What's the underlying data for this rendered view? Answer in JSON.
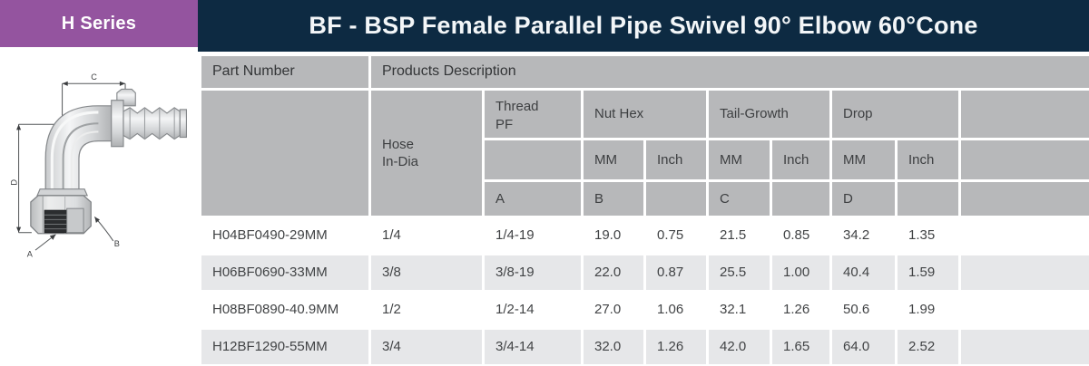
{
  "series_badge": "H Series",
  "title": "BF - BSP Female Parallel Pipe Swivel 90° Elbow 60°Cone",
  "colors": {
    "badge_purple": "#94549f",
    "title_navy": "#0d2a42",
    "header_gray": "#b7b8ba",
    "zebra_gray": "#e6e7e9",
    "text_dark": "#3d3f41"
  },
  "diagram": {
    "labels": {
      "a": "A",
      "b": "B",
      "c": "C",
      "d": "D"
    }
  },
  "table": {
    "header": {
      "part_number": "Part Number",
      "products_description": "Products Description",
      "hose_in_dia": "Hose\nIn-Dia",
      "thread_pf": "Thread\nPF",
      "nut_hex": "Nut Hex",
      "tail_growth": "Tail-Growth",
      "drop": "Drop",
      "units": {
        "mm": "MM",
        "inch": "Inch"
      },
      "dims": {
        "a": "A",
        "b": "B",
        "c": "C",
        "d": "D"
      }
    },
    "rows": [
      {
        "part": "H04BF0490-29MM",
        "hose": "1/4",
        "thread": "1/4-19",
        "nut_mm": "19.0",
        "nut_inch": "0.75",
        "tail_mm": "21.5",
        "tail_inch": "0.85",
        "drop_mm": "34.2",
        "drop_inch": "1.35",
        "blank": ""
      },
      {
        "part": "H06BF0690-33MM",
        "hose": "3/8",
        "thread": "3/8-19",
        "nut_mm": "22.0",
        "nut_inch": "0.87",
        "tail_mm": "25.5",
        "tail_inch": "1.00",
        "drop_mm": "40.4",
        "drop_inch": "1.59",
        "blank": ""
      },
      {
        "part": "H08BF0890-40.9MM",
        "hose": "1/2",
        "thread": "1/2-14",
        "nut_mm": "27.0",
        "nut_inch": "1.06",
        "tail_mm": "32.1",
        "tail_inch": "1.26",
        "drop_mm": "50.6",
        "drop_inch": "1.99",
        "blank": ""
      },
      {
        "part": "H12BF1290-55MM",
        "hose": "3/4",
        "thread": "3/4-14",
        "nut_mm": "32.0",
        "nut_inch": "1.26",
        "tail_mm": "42.0",
        "tail_inch": "1.65",
        "drop_mm": "64.0",
        "drop_inch": "2.52",
        "blank": ""
      }
    ]
  }
}
